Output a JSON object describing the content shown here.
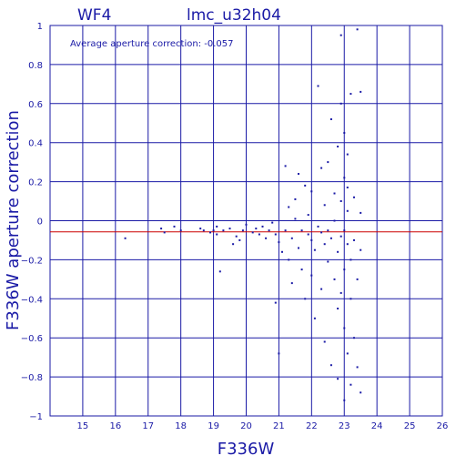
{
  "chart_data": {
    "type": "scatter",
    "title": "lmc_u32h04",
    "subtitle": "WF4",
    "xlabel": "F336W",
    "ylabel": "F336W aperture correction",
    "annotation": "Average aperture correction: -0.057",
    "xlim": [
      14,
      26
    ],
    "ylim": [
      -1,
      1
    ],
    "xticks": [
      15,
      16,
      17,
      18,
      19,
      20,
      21,
      22,
      23,
      24,
      25,
      26
    ],
    "yticks": [
      -1,
      -0.8,
      -0.6,
      -0.4,
      -0.2,
      0,
      0.2,
      0.4,
      0.6,
      0.8,
      1
    ],
    "grid": true,
    "reference_line": {
      "y": -0.057,
      "color": "#cc0000"
    },
    "colors": {
      "axes": "#1a1aa6",
      "points": "#1a1aa6",
      "reference": "#cc0000"
    },
    "points": [
      [
        16.3,
        -0.09
      ],
      [
        17.4,
        -0.04
      ],
      [
        17.5,
        -0.06
      ],
      [
        17.8,
        -0.03
      ],
      [
        18.0,
        -0.05
      ],
      [
        18.6,
        -0.04
      ],
      [
        18.7,
        -0.05
      ],
      [
        18.9,
        -0.06
      ],
      [
        19.0,
        -0.05
      ],
      [
        19.1,
        -0.03
      ],
      [
        19.1,
        -0.07
      ],
      [
        19.2,
        -0.26
      ],
      [
        19.3,
        -0.05
      ],
      [
        19.5,
        -0.04
      ],
      [
        19.6,
        -0.12
      ],
      [
        19.7,
        -0.08
      ],
      [
        19.8,
        -0.1
      ],
      [
        19.9,
        -0.05
      ],
      [
        20.0,
        -0.02
      ],
      [
        20.2,
        -0.06
      ],
      [
        20.3,
        -0.04
      ],
      [
        20.4,
        -0.07
      ],
      [
        20.5,
        -0.03
      ],
      [
        20.6,
        -0.09
      ],
      [
        20.7,
        -0.05
      ],
      [
        20.8,
        -0.01
      ],
      [
        20.9,
        -0.07
      ],
      [
        20.9,
        -0.42
      ],
      [
        21.0,
        -0.68
      ],
      [
        21.0,
        -0.11
      ],
      [
        21.1,
        -0.16
      ],
      [
        21.2,
        -0.05
      ],
      [
        21.2,
        0.28
      ],
      [
        21.3,
        0.07
      ],
      [
        21.3,
        -0.2
      ],
      [
        21.4,
        -0.09
      ],
      [
        21.4,
        -0.32
      ],
      [
        21.5,
        0.01
      ],
      [
        21.5,
        0.11
      ],
      [
        21.6,
        -0.14
      ],
      [
        21.6,
        0.24
      ],
      [
        21.7,
        -0.05
      ],
      [
        21.7,
        -0.25
      ],
      [
        21.8,
        0.18
      ],
      [
        21.8,
        -0.4
      ],
      [
        21.9,
        -0.07
      ],
      [
        21.9,
        0.03
      ],
      [
        22.0,
        -0.1
      ],
      [
        22.0,
        0.15
      ],
      [
        22.0,
        -0.28
      ],
      [
        22.1,
        -0.15
      ],
      [
        22.1,
        -0.5
      ],
      [
        22.2,
        -0.03
      ],
      [
        22.2,
        0.69
      ],
      [
        22.3,
        -0.06
      ],
      [
        22.3,
        0.27
      ],
      [
        22.3,
        -0.35
      ],
      [
        22.4,
        -0.12
      ],
      [
        22.4,
        -0.62
      ],
      [
        22.4,
        0.08
      ],
      [
        22.5,
        -0.05
      ],
      [
        22.5,
        -0.21
      ],
      [
        22.5,
        0.3
      ],
      [
        22.6,
        0.52
      ],
      [
        22.6,
        -0.74
      ],
      [
        22.6,
        -0.09
      ],
      [
        22.7,
        0.14
      ],
      [
        22.7,
        -0.3
      ],
      [
        22.7,
        0.0
      ],
      [
        22.8,
        0.38
      ],
      [
        22.8,
        -0.45
      ],
      [
        22.8,
        -0.16
      ],
      [
        22.8,
        -0.81
      ],
      [
        22.9,
        0.1
      ],
      [
        22.9,
        0.95
      ],
      [
        22.9,
        0.6
      ],
      [
        22.9,
        -0.08
      ],
      [
        22.9,
        -0.37
      ],
      [
        23.0,
        0.22
      ],
      [
        23.0,
        0.45
      ],
      [
        23.0,
        -0.05
      ],
      [
        23.0,
        -0.25
      ],
      [
        23.0,
        -0.55
      ],
      [
        23.0,
        -0.92
      ],
      [
        23.1,
        0.05
      ],
      [
        23.1,
        -0.12
      ],
      [
        23.1,
        0.17
      ],
      [
        23.1,
        -0.68
      ],
      [
        23.1,
        0.34
      ],
      [
        23.2,
        -0.4
      ],
      [
        23.2,
        -0.2
      ],
      [
        23.2,
        0.65
      ],
      [
        23.2,
        -0.84
      ],
      [
        23.3,
        -0.1
      ],
      [
        23.3,
        0.12
      ],
      [
        23.3,
        -0.6
      ],
      [
        23.4,
        0.98
      ],
      [
        23.4,
        -0.3
      ],
      [
        23.4,
        -0.75
      ],
      [
        23.5,
        -0.15
      ],
      [
        23.5,
        0.04
      ],
      [
        23.5,
        0.66
      ],
      [
        23.5,
        -0.88
      ]
    ]
  }
}
